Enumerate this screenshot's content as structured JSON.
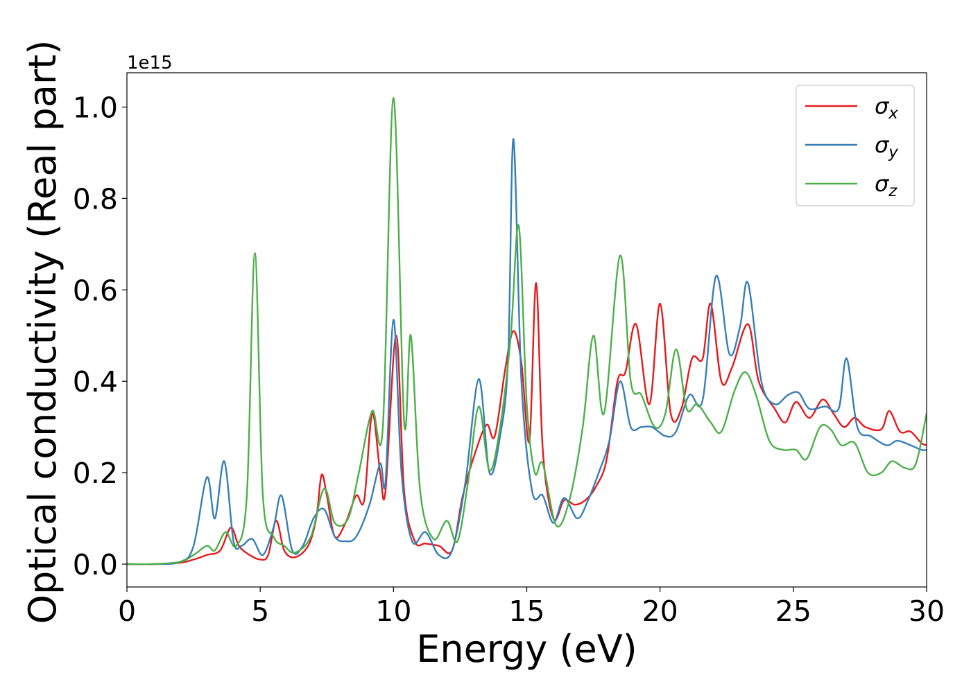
{
  "chart_data": {
    "type": "line",
    "title": "",
    "xlabel": "Energy (eV)",
    "ylabel": "Optical conductivity (Real part)",
    "offset_text": "1e15",
    "xlim": [
      0,
      30
    ],
    "ylim": [
      -0.05,
      1.075
    ],
    "grid": false,
    "legend_position": "top-right",
    "x_ticks": [
      0,
      5,
      10,
      15,
      20,
      25,
      30
    ],
    "x_tick_labels": [
      "0",
      "5",
      "10",
      "15",
      "20",
      "25",
      "30"
    ],
    "y_ticks": [
      0.0,
      0.2,
      0.4,
      0.6,
      0.8,
      1.0
    ],
    "y_tick_labels": [
      "0.0",
      "0.2",
      "0.4",
      "0.6",
      "0.8",
      "1.0"
    ],
    "series": [
      {
        "name": "σx",
        "symbol": "σ",
        "subscript": "x",
        "color": "#e41a1c",
        "points": [
          [
            0,
            0
          ],
          [
            1,
            0
          ],
          [
            2,
            0.003
          ],
          [
            2.5,
            0.01
          ],
          [
            3,
            0.02
          ],
          [
            3.5,
            0.03
          ],
          [
            3.9,
            0.08
          ],
          [
            4.2,
            0.04
          ],
          [
            4.6,
            0.02
          ],
          [
            5,
            0.01
          ],
          [
            5.3,
            0.02
          ],
          [
            5.6,
            0.095
          ],
          [
            5.9,
            0.03
          ],
          [
            6.3,
            0.015
          ],
          [
            6.8,
            0.04
          ],
          [
            7.1,
            0.1
          ],
          [
            7.3,
            0.195
          ],
          [
            7.5,
            0.15
          ],
          [
            7.8,
            0.06
          ],
          [
            8.2,
            0.09
          ],
          [
            8.6,
            0.15
          ],
          [
            8.9,
            0.14
          ],
          [
            9.2,
            0.33
          ],
          [
            9.5,
            0.2
          ],
          [
            9.7,
            0.16
          ],
          [
            10.1,
            0.5
          ],
          [
            10.4,
            0.16
          ],
          [
            10.8,
            0.05
          ],
          [
            11.2,
            0.045
          ],
          [
            11.7,
            0.04
          ],
          [
            12.2,
            0.03
          ],
          [
            12.6,
            0.15
          ],
          [
            13.1,
            0.25
          ],
          [
            13.5,
            0.305
          ],
          [
            13.8,
            0.28
          ],
          [
            14.2,
            0.43
          ],
          [
            14.5,
            0.51
          ],
          [
            14.8,
            0.44
          ],
          [
            15.1,
            0.27
          ],
          [
            15.35,
            0.615
          ],
          [
            15.6,
            0.25
          ],
          [
            16,
            0.1
          ],
          [
            16.4,
            0.14
          ],
          [
            16.8,
            0.13
          ],
          [
            17.2,
            0.14
          ],
          [
            17.6,
            0.17
          ],
          [
            18,
            0.23
          ],
          [
            18.4,
            0.4
          ],
          [
            18.7,
            0.42
          ],
          [
            19.1,
            0.525
          ],
          [
            19.6,
            0.35
          ],
          [
            20,
            0.57
          ],
          [
            20.4,
            0.33
          ],
          [
            20.8,
            0.34
          ],
          [
            21.2,
            0.45
          ],
          [
            21.6,
            0.45
          ],
          [
            21.9,
            0.57
          ],
          [
            22.3,
            0.4
          ],
          [
            22.7,
            0.43
          ],
          [
            23.3,
            0.525
          ],
          [
            23.7,
            0.4
          ],
          [
            24.3,
            0.34
          ],
          [
            24.7,
            0.31
          ],
          [
            25.1,
            0.355
          ],
          [
            25.6,
            0.32
          ],
          [
            26.1,
            0.36
          ],
          [
            26.5,
            0.33
          ],
          [
            26.9,
            0.3
          ],
          [
            27.3,
            0.32
          ],
          [
            27.7,
            0.3
          ],
          [
            28.3,
            0.295
          ],
          [
            28.6,
            0.335
          ],
          [
            29,
            0.29
          ],
          [
            29.4,
            0.29
          ],
          [
            29.8,
            0.265
          ],
          [
            30,
            0.26
          ]
        ]
      },
      {
        "name": "σy",
        "symbol": "σ",
        "subscript": "y",
        "color": "#377eb8",
        "points": [
          [
            0,
            0
          ],
          [
            1,
            0
          ],
          [
            2,
            0.005
          ],
          [
            2.5,
            0.04
          ],
          [
            3,
            0.19
          ],
          [
            3.3,
            0.1
          ],
          [
            3.65,
            0.225
          ],
          [
            4,
            0.05
          ],
          [
            4.3,
            0.04
          ],
          [
            4.7,
            0.055
          ],
          [
            5.1,
            0.02
          ],
          [
            5.5,
            0.08
          ],
          [
            5.8,
            0.15
          ],
          [
            6.2,
            0.03
          ],
          [
            6.6,
            0.04
          ],
          [
            7,
            0.1
          ],
          [
            7.4,
            0.12
          ],
          [
            7.8,
            0.06
          ],
          [
            8.2,
            0.05
          ],
          [
            8.6,
            0.06
          ],
          [
            9.1,
            0.13
          ],
          [
            9.5,
            0.22
          ],
          [
            9.7,
            0.18
          ],
          [
            10,
            0.535
          ],
          [
            10.3,
            0.2
          ],
          [
            10.7,
            0.05
          ],
          [
            11.2,
            0.07
          ],
          [
            11.7,
            0.02
          ],
          [
            12.2,
            0.03
          ],
          [
            12.7,
            0.18
          ],
          [
            13.2,
            0.405
          ],
          [
            13.6,
            0.2
          ],
          [
            14,
            0.28
          ],
          [
            14.3,
            0.45
          ],
          [
            14.5,
            0.93
          ],
          [
            14.8,
            0.4
          ],
          [
            15.2,
            0.16
          ],
          [
            15.6,
            0.15
          ],
          [
            16,
            0.09
          ],
          [
            16.4,
            0.145
          ],
          [
            16.9,
            0.1
          ],
          [
            17.3,
            0.14
          ],
          [
            17.7,
            0.2
          ],
          [
            18.1,
            0.27
          ],
          [
            18.5,
            0.4
          ],
          [
            18.9,
            0.3
          ],
          [
            19.3,
            0.3
          ],
          [
            19.7,
            0.3
          ],
          [
            20.2,
            0.28
          ],
          [
            20.6,
            0.29
          ],
          [
            21.1,
            0.37
          ],
          [
            21.6,
            0.36
          ],
          [
            22.1,
            0.63
          ],
          [
            22.6,
            0.46
          ],
          [
            23,
            0.52
          ],
          [
            23.3,
            0.615
          ],
          [
            23.8,
            0.4
          ],
          [
            24.3,
            0.35
          ],
          [
            24.8,
            0.37
          ],
          [
            25.2,
            0.375
          ],
          [
            25.6,
            0.34
          ],
          [
            26.2,
            0.345
          ],
          [
            26.7,
            0.34
          ],
          [
            27,
            0.45
          ],
          [
            27.4,
            0.3
          ],
          [
            27.9,
            0.28
          ],
          [
            28.5,
            0.26
          ],
          [
            28.9,
            0.27
          ],
          [
            29.4,
            0.26
          ],
          [
            29.8,
            0.25
          ],
          [
            30,
            0.25
          ]
        ]
      },
      {
        "name": "σz",
        "symbol": "σ",
        "subscript": "z",
        "color": "#4daf4a",
        "points": [
          [
            0,
            0
          ],
          [
            1,
            0
          ],
          [
            2,
            0.005
          ],
          [
            2.5,
            0.02
          ],
          [
            3,
            0.04
          ],
          [
            3.3,
            0.03
          ],
          [
            3.7,
            0.07
          ],
          [
            4.1,
            0.04
          ],
          [
            4.5,
            0.15
          ],
          [
            4.8,
            0.68
          ],
          [
            5.1,
            0.15
          ],
          [
            5.5,
            0.06
          ],
          [
            5.9,
            0.04
          ],
          [
            6.3,
            0.025
          ],
          [
            6.9,
            0.06
          ],
          [
            7.4,
            0.165
          ],
          [
            7.8,
            0.09
          ],
          [
            8.3,
            0.1
          ],
          [
            8.7,
            0.2
          ],
          [
            9.2,
            0.335
          ],
          [
            9.6,
            0.3
          ],
          [
            10,
            1.02
          ],
          [
            10.4,
            0.31
          ],
          [
            10.65,
            0.5
          ],
          [
            11,
            0.16
          ],
          [
            11.5,
            0.055
          ],
          [
            12,
            0.095
          ],
          [
            12.4,
            0.05
          ],
          [
            12.8,
            0.18
          ],
          [
            13.2,
            0.345
          ],
          [
            13.6,
            0.205
          ],
          [
            14,
            0.3
          ],
          [
            14.4,
            0.5
          ],
          [
            14.7,
            0.74
          ],
          [
            15,
            0.35
          ],
          [
            15.3,
            0.2
          ],
          [
            15.6,
            0.22
          ],
          [
            16.1,
            0.085
          ],
          [
            16.6,
            0.14
          ],
          [
            17.1,
            0.3
          ],
          [
            17.5,
            0.5
          ],
          [
            17.9,
            0.33
          ],
          [
            18.5,
            0.675
          ],
          [
            18.9,
            0.4
          ],
          [
            19.3,
            0.37
          ],
          [
            19.8,
            0.3
          ],
          [
            20.2,
            0.33
          ],
          [
            20.6,
            0.47
          ],
          [
            21,
            0.34
          ],
          [
            21.4,
            0.35
          ],
          [
            21.9,
            0.31
          ],
          [
            22.3,
            0.29
          ],
          [
            22.8,
            0.38
          ],
          [
            23.2,
            0.42
          ],
          [
            23.6,
            0.37
          ],
          [
            24.1,
            0.27
          ],
          [
            24.6,
            0.25
          ],
          [
            25.1,
            0.25
          ],
          [
            25.5,
            0.23
          ],
          [
            26,
            0.3
          ],
          [
            26.4,
            0.295
          ],
          [
            26.8,
            0.26
          ],
          [
            27.3,
            0.265
          ],
          [
            27.8,
            0.2
          ],
          [
            28.3,
            0.2
          ],
          [
            28.7,
            0.225
          ],
          [
            29.2,
            0.21
          ],
          [
            29.6,
            0.22
          ],
          [
            30,
            0.33
          ]
        ]
      }
    ]
  }
}
